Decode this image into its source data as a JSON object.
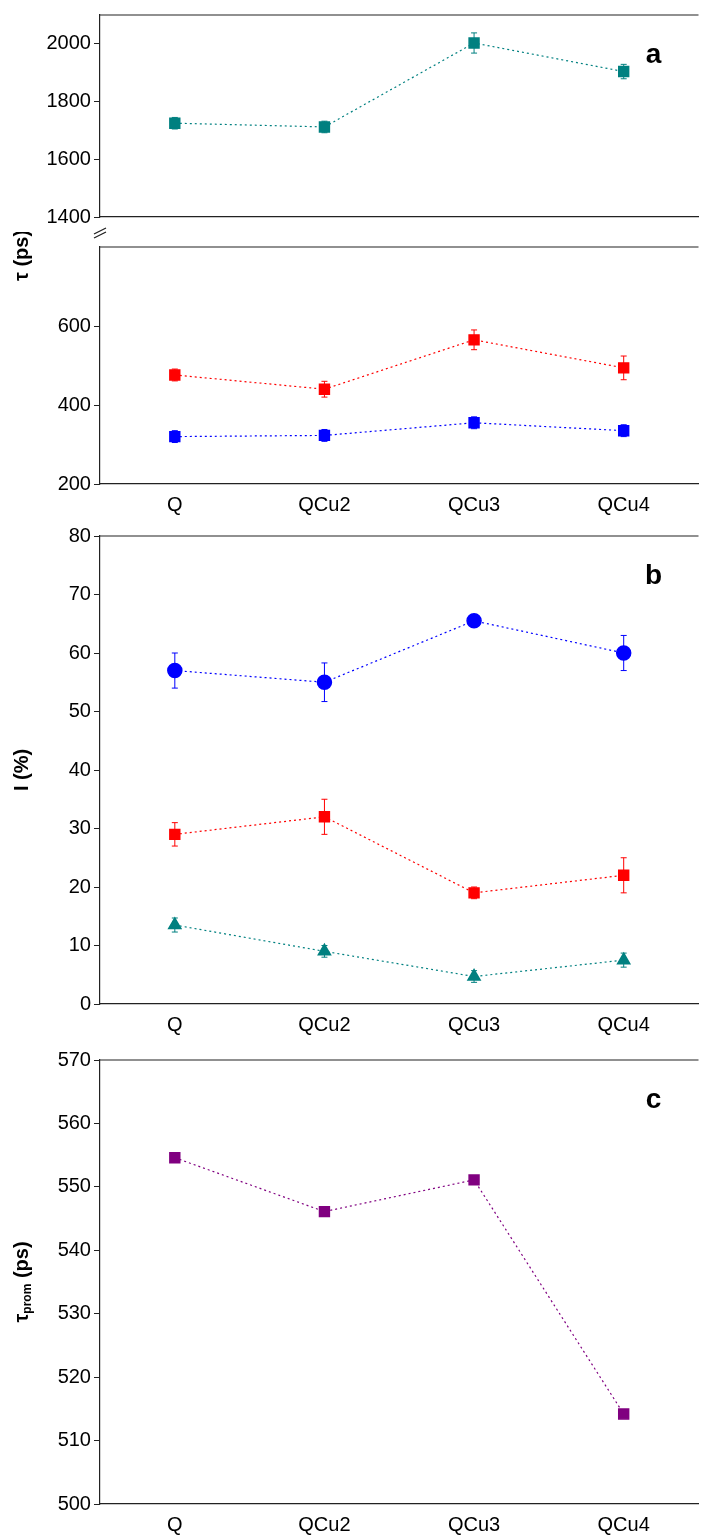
{
  "chart_data": [
    {
      "type": "line",
      "annotations": [
        "a"
      ],
      "categories": [
        null,
        null,
        null,
        null
      ],
      "series": [
        {
          "color": "#008080",
          "values": [
            1725,
            1712,
            2003,
            1904
          ],
          "errors": [
            20,
            20,
            35,
            25
          ]
        }
      ],
      "ylim": [
        1400,
        2100
      ],
      "yticks": [
        1400,
        1600,
        1800,
        2000
      ],
      "tick_labels": "y",
      "marker": "square",
      "line_style": "dotted",
      "grid": false,
      "legend": false
    },
    {
      "type": "line",
      "ylabel": "τ (ps)",
      "categories": [
        "Q",
        "QCu2",
        "QCu3",
        "QCu4"
      ],
      "series": [
        {
          "color": "#ff0000",
          "values": [
            476,
            440,
            565,
            494
          ],
          "errors": [
            15,
            20,
            25,
            30
          ]
        },
        {
          "color": "#0000ff",
          "values": [
            320,
            323,
            355,
            335
          ],
          "errors": [
            15,
            15,
            15,
            15
          ]
        }
      ],
      "ylim": [
        200,
        800
      ],
      "yticks": [
        200,
        400,
        600
      ],
      "marker": "square",
      "line_style": "dotted",
      "grid": false,
      "legend": false
    },
    {
      "type": "line",
      "ylabel": "I (%)",
      "annotations": [
        "b"
      ],
      "categories": [
        "Q",
        "QCu2",
        "QCu3",
        "QCu4"
      ],
      "series": [
        {
          "color": "#0000ff",
          "marker": "circle",
          "values": [
            57,
            55,
            65.5,
            60
          ],
          "errors": [
            3,
            3.3,
            1,
            3
          ]
        },
        {
          "color": "#ff0000",
          "marker": "square",
          "values": [
            29,
            32,
            19,
            22
          ],
          "errors": [
            2,
            3,
            1,
            3
          ]
        },
        {
          "color": "#008080",
          "marker": "triangle",
          "values": [
            13.5,
            9,
            4.7,
            7.5
          ],
          "errors": [
            1.2,
            1,
            1,
            1.2
          ]
        }
      ],
      "ylim": [
        0,
        80
      ],
      "yticks": [
        0,
        10,
        20,
        30,
        40,
        50,
        60,
        70,
        80
      ],
      "line_style": "dotted",
      "grid": false,
      "legend": false
    },
    {
      "type": "line",
      "ylabel": "τ$_{prom}$ (ps)",
      "annotations": [
        "c"
      ],
      "categories": [
        "Q",
        "QCu2",
        "QCu3",
        "QCu4"
      ],
      "series": [
        {
          "color": "#800080",
          "values": [
            554.6,
            546.1,
            551.1,
            514.2
          ]
        }
      ],
      "ylim": [
        500,
        570
      ],
      "yticks": [
        500,
        510,
        520,
        530,
        540,
        550,
        560,
        570
      ],
      "marker": "square",
      "line_style": "dotted",
      "grid": false,
      "legend": false
    }
  ]
}
